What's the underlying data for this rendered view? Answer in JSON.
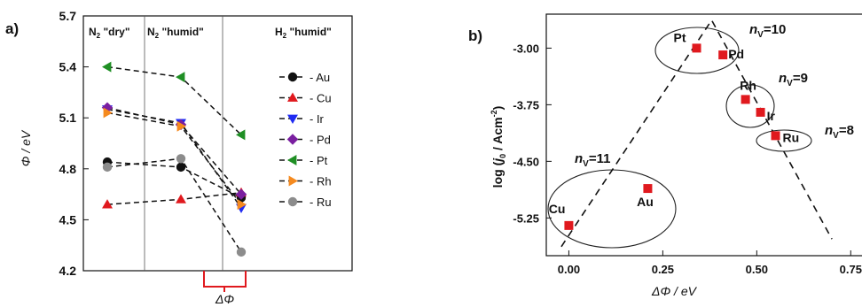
{
  "panel_a": {
    "label": "a)",
    "ylabel": "Φ / eV",
    "region_labels": [
      {
        "main": "N",
        "sub": "2",
        "rest": " \"dry\""
      },
      {
        "main": "N",
        "sub": "2",
        "rest": " \"humid\""
      },
      {
        "main": "H",
        "sub": "2",
        "rest": " \"humid\""
      }
    ],
    "bracket_label": "ΔΦ"
  },
  "panel_b": {
    "label": "b)",
    "xlabel": "ΔΦ / eV",
    "ylabel": "log (j0 / Acm⁻²)",
    "ylabel_parts": {
      "pre": "log (",
      "j": "j",
      "j_sub": "0",
      "mid": " / Acm",
      "sup": "-2",
      "post": ")"
    },
    "groups": [
      {
        "text": "n",
        "sub": "V",
        "rest": "=10"
      },
      {
        "text": "n",
        "sub": "V",
        "rest": "=9"
      },
      {
        "text": "n",
        "sub": "V",
        "rest": "=8"
      },
      {
        "text": "n",
        "sub": "V",
        "rest": "=11"
      }
    ]
  },
  "colors": {
    "Au": "#111111",
    "Cu": "#e0191e",
    "Ir": "#1f2bf2",
    "Pd": "#7a1fa0",
    "Pt": "#1f8f24",
    "Rh": "#f58a1f",
    "Ru": "#8c8c8c",
    "marker_b": "#e0191e"
  },
  "chart_data": [
    {
      "type": "line",
      "panel": "a",
      "categories": [
        "N2 \"dry\"",
        "N2 \"humid\"",
        "H2 \"humid\""
      ],
      "ylim": [
        4.2,
        5.7
      ],
      "yticks": [
        "4.2",
        "4.5",
        "4.8",
        "5.1",
        "5.4",
        "5.7"
      ],
      "ylabel": "Φ / eV",
      "legend_position": "right",
      "series": [
        {
          "name": "- Au",
          "metal": "Au",
          "marker": "circle",
          "values": [
            4.84,
            4.81,
            4.63
          ]
        },
        {
          "name": "- Cu",
          "metal": "Cu",
          "marker": "triangle-up",
          "values": [
            4.59,
            4.62,
            4.66
          ]
        },
        {
          "name": "- Ir",
          "metal": "Ir",
          "marker": "triangle-down",
          "values": [
            5.15,
            5.07,
            4.57
          ]
        },
        {
          "name": "- Pd",
          "metal": "Pd",
          "marker": "diamond",
          "values": [
            5.16,
            5.06,
            4.65
          ]
        },
        {
          "name": "- Pt",
          "metal": "Pt",
          "marker": "triangle-left",
          "values": [
            5.4,
            5.34,
            5.0
          ]
        },
        {
          "name": "- Rh",
          "metal": "Rh",
          "marker": "triangle-right",
          "values": [
            5.13,
            5.05,
            4.59
          ]
        },
        {
          "name": "- Ru",
          "metal": "Ru",
          "marker": "circle",
          "values": [
            4.81,
            4.86,
            4.31
          ]
        }
      ]
    },
    {
      "type": "scatter",
      "panel": "b",
      "xlabel": "ΔΦ / eV",
      "ylabel": "log (j0 / Acm⁻²)",
      "xlim": [
        -0.06,
        0.78
      ],
      "ylim": [
        -5.75,
        -2.55
      ],
      "xticks": [
        "0.00",
        "0.25",
        "0.50",
        "0.75"
      ],
      "yticks": [
        "-3.00",
        "-3.75",
        "-4.50",
        "-5.25"
      ],
      "points": [
        {
          "label": "Cu",
          "x": 0.0,
          "y": -5.35
        },
        {
          "label": "Au",
          "x": 0.21,
          "y": -4.86
        },
        {
          "label": "Pt",
          "x": 0.34,
          "y": -3.0
        },
        {
          "label": "Pd",
          "x": 0.41,
          "y": -3.09
        },
        {
          "label": "Rh",
          "x": 0.47,
          "y": -3.68
        },
        {
          "label": "Ir",
          "x": 0.51,
          "y": -3.85
        },
        {
          "label": "Ru",
          "x": 0.55,
          "y": -4.16
        }
      ],
      "volcano_line": [
        [
          -0.02,
          -5.63
        ],
        [
          0.38,
          -2.63
        ],
        [
          0.7,
          -5.53
        ]
      ]
    }
  ]
}
